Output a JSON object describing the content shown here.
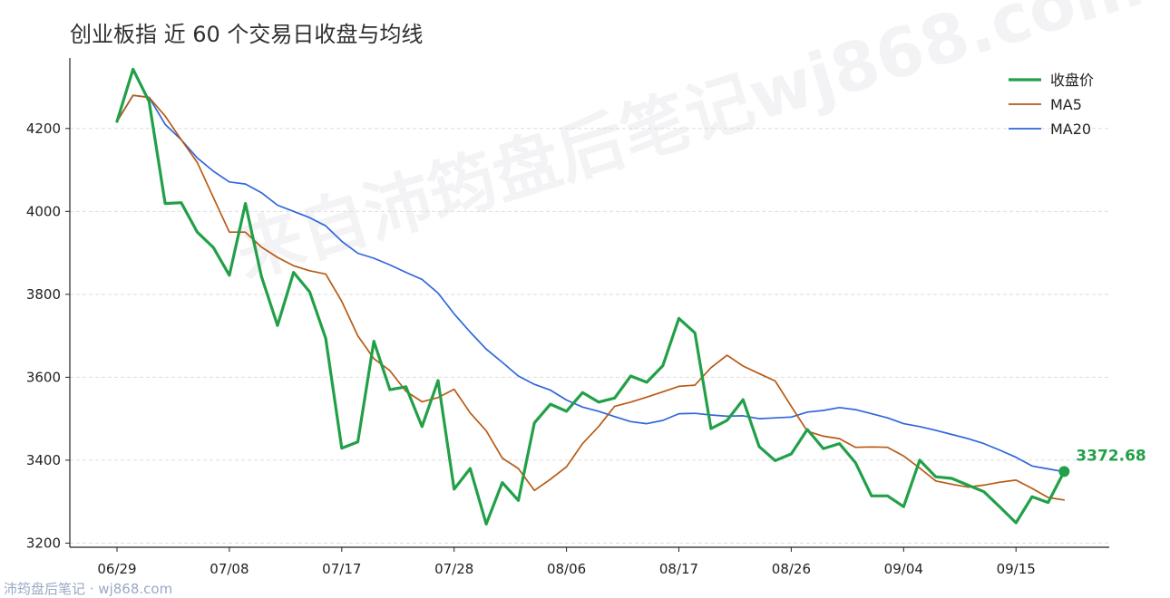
{
  "title": "创业板指 近 60 个交易日收盘与均线",
  "watermark": "来自沛筠盘后笔记wj868.com",
  "footer": "沛筠盘后笔记 · wj868.com",
  "last_value_label": "3372.68",
  "colors": {
    "close": "#21a048",
    "ma5": "#b85a14",
    "ma20": "#2f66db",
    "grid": "#dddddd",
    "axis": "#222222"
  },
  "chart_data": {
    "type": "line",
    "title": "创业板指 近 60 个交易日收盘与均线",
    "xlabel": "",
    "ylabel": "",
    "ylim": [
      3190,
      4370
    ],
    "yticks": [
      3200,
      3400,
      3600,
      3800,
      4000,
      4200
    ],
    "x_tick_labels": [
      {
        "index": 0,
        "label": "06/29"
      },
      {
        "index": 7,
        "label": "07/08"
      },
      {
        "index": 14,
        "label": "07/17"
      },
      {
        "index": 21,
        "label": "07/28"
      },
      {
        "index": 28,
        "label": "08/06"
      },
      {
        "index": 35,
        "label": "08/17"
      },
      {
        "index": 42,
        "label": "08/26"
      },
      {
        "index": 49,
        "label": "09/04"
      },
      {
        "index": 56,
        "label": "09/15"
      }
    ],
    "grid": "horizontal dashed",
    "legend_position": "top-right",
    "series": [
      {
        "name": "收盘价",
        "key": "close",
        "values": [
          4217,
          4343,
          4265,
          4019,
          4021,
          3950,
          3913,
          3846,
          4019,
          3843,
          3725,
          3853,
          3806,
          3694,
          3429,
          3444,
          3687,
          3570,
          3577,
          3481,
          3592,
          3330,
          3380,
          3246,
          3346,
          3303,
          3490,
          3535,
          3518,
          3563,
          3540,
          3550,
          3603,
          3588,
          3628,
          3742,
          3707,
          3476,
          3496,
          3546,
          3433,
          3399,
          3415,
          3474,
          3428,
          3440,
          3394,
          3314,
          3314,
          3288,
          3400,
          3360,
          3356,
          3340,
          3324,
          3287,
          3249,
          3312,
          3298,
          3372.68
        ]
      },
      {
        "name": "MA5",
        "key": "ma5",
        "values": [
          4217,
          4280,
          4275,
          4230,
          4173,
          4118,
          4034,
          3950,
          3950,
          3914,
          3889,
          3869,
          3857,
          3849,
          3783,
          3700,
          3645,
          3616,
          3566,
          3541,
          3551,
          3571,
          3514,
          3471,
          3405,
          3380,
          3327,
          3354,
          3384,
          3440,
          3481,
          3530,
          3540,
          3552,
          3565,
          3578,
          3581,
          3623,
          3653,
          3627,
          3609,
          3591,
          3530,
          3470,
          3458,
          3452,
          3431,
          3432,
          3431,
          3410,
          3381,
          3350,
          3342,
          3335,
          3340,
          3347,
          3352,
          3332,
          3310,
          3304
        ]
      },
      {
        "name": "MA20",
        "key": "ma20",
        "values": [
          4217,
          4280,
          4275,
          4210,
          4173,
          4129,
          4097,
          4071,
          4066,
          4045,
          4015,
          4000,
          3985,
          3965,
          3928,
          3899,
          3887,
          3871,
          3853,
          3836,
          3803,
          3753,
          3709,
          3668,
          3636,
          3603,
          3583,
          3569,
          3545,
          3528,
          3518,
          3505,
          3493,
          3488,
          3496,
          3512,
          3513,
          3509,
          3506,
          3507,
          3500,
          3502,
          3504,
          3516,
          3520,
          3527,
          3522,
          3512,
          3502,
          3488,
          3481,
          3472,
          3462,
          3452,
          3440,
          3424,
          3407,
          3386,
          3379,
          3372
        ]
      }
    ]
  }
}
